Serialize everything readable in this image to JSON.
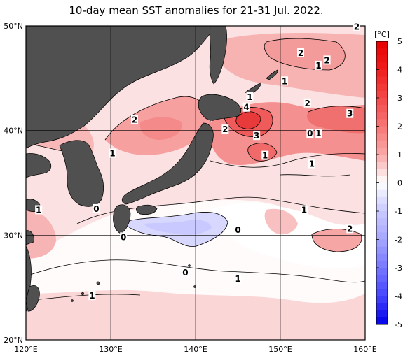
{
  "title": "10-day mean SST anomalies for 21-31 Jul. 2022.",
  "map": {
    "lon_range": [
      120,
      160
    ],
    "lat_range": [
      20,
      50
    ],
    "lon_ticks": [
      {
        "value": 120,
        "label": "120°E"
      },
      {
        "value": 130,
        "label": "130°E"
      },
      {
        "value": 140,
        "label": "140°E"
      },
      {
        "value": 150,
        "label": "150°E"
      },
      {
        "value": 160,
        "label": "160°E"
      }
    ],
    "lat_ticks": [
      {
        "value": 20,
        "label": "20°N"
      },
      {
        "value": 30,
        "label": "30°N"
      },
      {
        "value": 40,
        "label": "40°N"
      },
      {
        "value": 50,
        "label": "50°N"
      }
    ],
    "grid": true,
    "land_color": "#505050",
    "contour_labels": [
      {
        "text": "2",
        "lon": 152.4,
        "lat": 47.4
      },
      {
        "text": "2",
        "lon": 159.0,
        "lat": 49.9
      },
      {
        "text": "1",
        "lon": 154.5,
        "lat": 46.2
      },
      {
        "text": "2",
        "lon": 155.5,
        "lat": 46.7
      },
      {
        "text": "1",
        "lon": 150.5,
        "lat": 44.7
      },
      {
        "text": "1",
        "lon": 146.4,
        "lat": 43.2
      },
      {
        "text": "4",
        "lon": 146.0,
        "lat": 42.2
      },
      {
        "text": "2",
        "lon": 153.2,
        "lat": 42.6
      },
      {
        "text": "3",
        "lon": 158.2,
        "lat": 41.6
      },
      {
        "text": "2",
        "lon": 132.8,
        "lat": 41.0
      },
      {
        "text": "2",
        "lon": 143.5,
        "lat": 40.1
      },
      {
        "text": "3",
        "lon": 147.2,
        "lat": 39.5
      },
      {
        "text": "0",
        "lon": 153.5,
        "lat": 39.7
      },
      {
        "text": "1",
        "lon": 154.5,
        "lat": 39.7
      },
      {
        "text": "1",
        "lon": 130.2,
        "lat": 37.8
      },
      {
        "text": "1",
        "lon": 148.2,
        "lat": 37.6
      },
      {
        "text": "1",
        "lon": 153.7,
        "lat": 36.8
      },
      {
        "text": "1",
        "lon": 121.5,
        "lat": 32.4
      },
      {
        "text": "0",
        "lon": 128.3,
        "lat": 32.5
      },
      {
        "text": "1",
        "lon": 152.8,
        "lat": 32.4
      },
      {
        "text": "0",
        "lon": 131.5,
        "lat": 29.8
      },
      {
        "text": "0",
        "lon": 145.0,
        "lat": 30.5
      },
      {
        "text": "2",
        "lon": 158.2,
        "lat": 30.6
      },
      {
        "text": "0",
        "lon": 138.8,
        "lat": 26.4
      },
      {
        "text": "1",
        "lon": 145.0,
        "lat": 25.8
      },
      {
        "text": "1",
        "lon": 127.8,
        "lat": 24.2
      }
    ]
  },
  "colorbar": {
    "unit": "[°C]",
    "min": -5,
    "max": 5,
    "ticks": [
      "5",
      "4",
      "3",
      "2",
      "1",
      "0",
      "-1",
      "-2",
      "-3",
      "-4",
      "-5"
    ],
    "colors": {
      "5": "#e80000",
      "4": "#f01c1c",
      "3": "#f44848",
      "2": "#f77777",
      "1": "#faa9a9",
      "0": "#ffffff",
      "-1": "#c9c9ff",
      "-2": "#a6a6ff",
      "-3": "#7777ff",
      "-4": "#4646ff",
      "-5": "#0000e8"
    }
  }
}
